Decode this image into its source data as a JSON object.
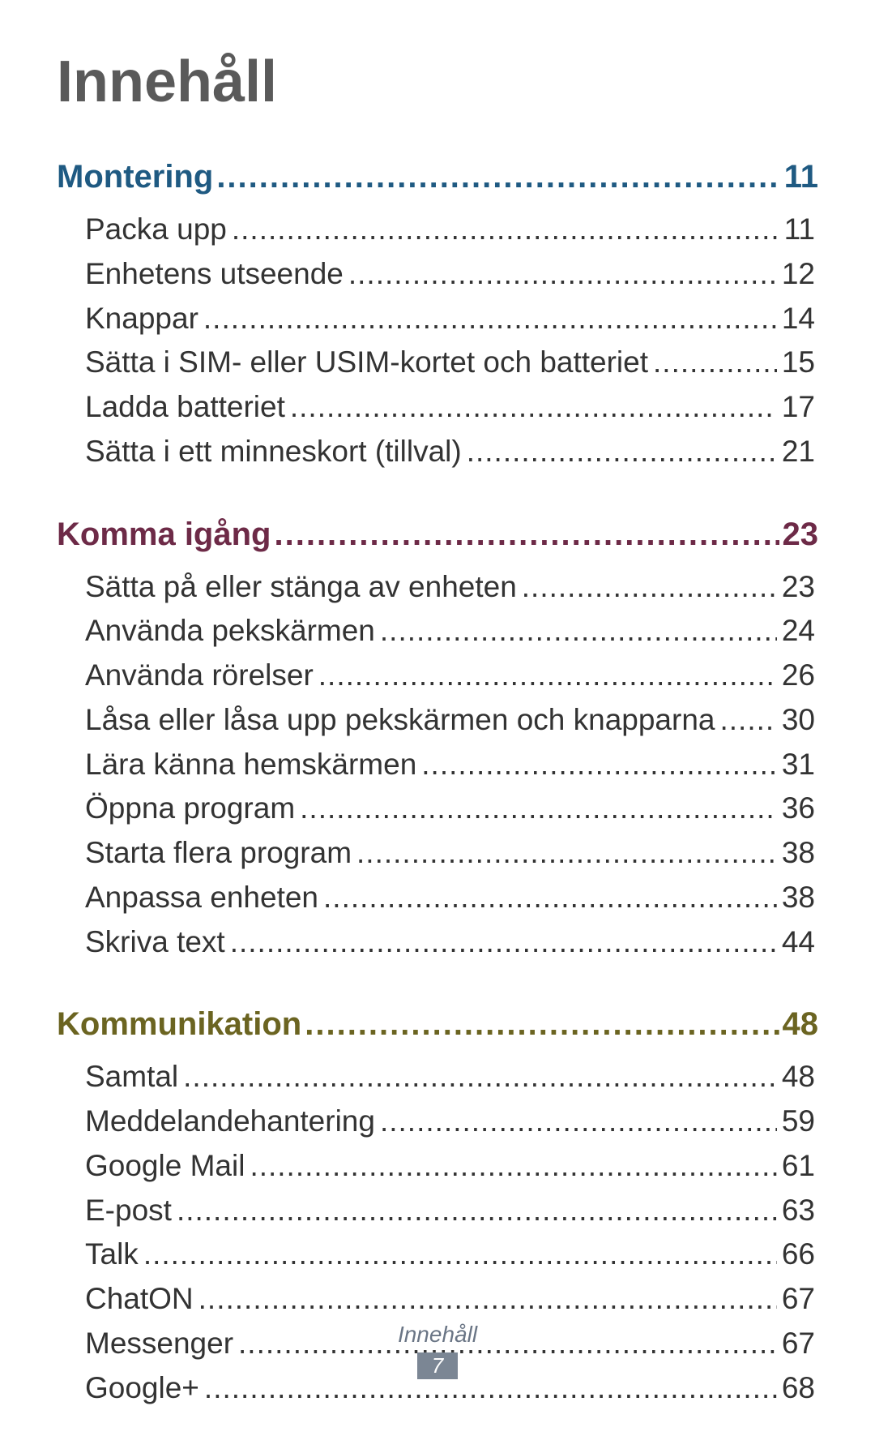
{
  "title": "Innehåll",
  "title_color": "#5a5a5a",
  "footer_label": "Innehåll",
  "footer_page": "7",
  "footer_label_color": "#6a7585",
  "footer_page_bg": "#7b8694",
  "dot_fill": "..................................................................................................................................................................................................................",
  "sections": [
    {
      "label": "Montering ",
      "page": " 11",
      "color": "#1f5a82",
      "entries": [
        {
          "label": "Packa upp ",
          "page": " 11"
        },
        {
          "label": "Enhetens utseende ",
          "page": " 12"
        },
        {
          "label": "Knappar ",
          "page": " 14"
        },
        {
          "label": "Sätta i SIM- eller USIM-kortet och batteriet ",
          "page": " 15"
        },
        {
          "label": "Ladda batteriet ",
          "page": " 17"
        },
        {
          "label": "Sätta i ett minneskort (tillval) ",
          "page": " 21"
        }
      ]
    },
    {
      "label": "Komma igång ",
      "page": " 23",
      "color": "#6d2a47",
      "entries": [
        {
          "label": "Sätta på eller stänga av enheten ",
          "page": " 23"
        },
        {
          "label": "Använda pekskärmen ",
          "page": " 24"
        },
        {
          "label": "Använda rörelser ",
          "page": " 26"
        },
        {
          "label": "Låsa eller låsa upp pekskärmen och knapparna ",
          "page": " 30"
        },
        {
          "label": "Lära känna hemskärmen ",
          "page": " 31"
        },
        {
          "label": "Öppna program ",
          "page": " 36"
        },
        {
          "label": "Starta flera program ",
          "page": " 38"
        },
        {
          "label": "Anpassa enheten ",
          "page": " 38"
        },
        {
          "label": "Skriva text ",
          "page": " 44"
        }
      ]
    },
    {
      "label": "Kommunikation ",
      "page": " 48",
      "color": "#6b6421",
      "entries": [
        {
          "label": "Samtal ",
          "page": " 48"
        },
        {
          "label": "Meddelandehantering ",
          "page": " 59"
        },
        {
          "label": "Google Mail ",
          "page": " 61"
        },
        {
          "label": "E-post ",
          "page": " 63"
        },
        {
          "label": "Talk ",
          "page": " 66"
        },
        {
          "label": "ChatON ",
          "page": " 67"
        },
        {
          "label": "Messenger ",
          "page": " 67"
        },
        {
          "label": "Google+ ",
          "page": " 68"
        }
      ]
    }
  ]
}
